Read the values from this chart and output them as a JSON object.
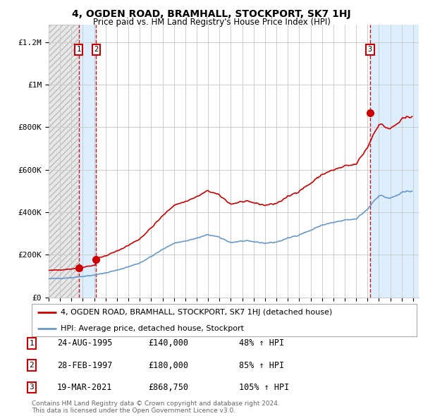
{
  "title": "4, OGDEN ROAD, BRAMHALL, STOCKPORT, SK7 1HJ",
  "subtitle": "Price paid vs. HM Land Registry's House Price Index (HPI)",
  "property_label": "4, OGDEN ROAD, BRAMHALL, STOCKPORT, SK7 1HJ (detached house)",
  "hpi_label": "HPI: Average price, detached house, Stockport",
  "sale_dates_decimal": [
    1995.646,
    1997.164,
    2021.22
  ],
  "sale_prices": [
    140000,
    180000,
    868750
  ],
  "sale_labels": [
    "1",
    "2",
    "3"
  ],
  "table_rows": [
    {
      "num": "1",
      "date": "24-AUG-1995",
      "price": "£140,000",
      "change": "48% ↑ HPI"
    },
    {
      "num": "2",
      "date": "28-FEB-1997",
      "price": "£180,000",
      "change": "85% ↑ HPI"
    },
    {
      "num": "3",
      "date": "19-MAR-2021",
      "price": "£868,750",
      "change": "105% ↑ HPI"
    }
  ],
  "footer": "Contains HM Land Registry data © Crown copyright and database right 2024.\nThis data is licensed under the Open Government Licence v3.0.",
  "property_line_color": "#cc0000",
  "hpi_line_color": "#6699cc",
  "sale_dot_color": "#cc0000",
  "label_box_color": "#cc0000",
  "hatch_fill_color": "#dddddd",
  "between_fill_color": "#ddeeff",
  "after_fill_color": "#ddeeff",
  "grid_color": "#cccccc",
  "background_color": "#ffffff",
  "yticks": [
    0,
    200000,
    400000,
    600000,
    800000,
    1000000,
    1200000
  ],
  "ylim": [
    0,
    1280000
  ],
  "xmin_year": 1993.0,
  "xmax_year": 2025.5,
  "xtick_years": [
    1993,
    1994,
    1995,
    1996,
    1997,
    1998,
    1999,
    2000,
    2001,
    2002,
    2003,
    2004,
    2005,
    2006,
    2007,
    2008,
    2009,
    2010,
    2011,
    2012,
    2013,
    2014,
    2015,
    2016,
    2017,
    2018,
    2019,
    2020,
    2021,
    2022,
    2023,
    2024,
    2025
  ]
}
